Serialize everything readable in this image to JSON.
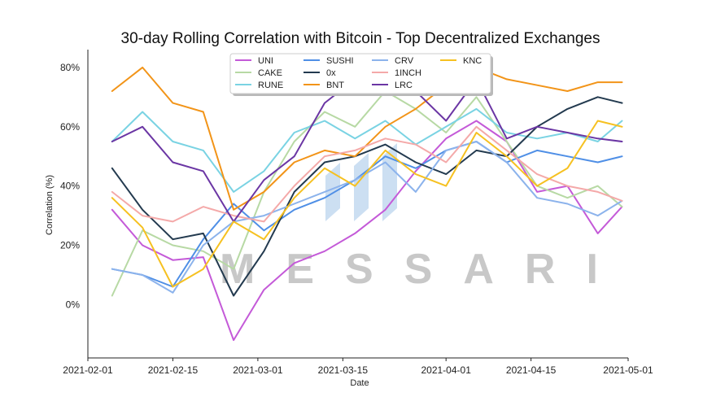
{
  "chart_data": {
    "type": "line",
    "title": "30-day Rolling Correlation with Bitcoin - Top Decentralized Exchanges",
    "xlabel": "Date",
    "ylabel": "Correlation (%)",
    "x_ticks": [
      "2021-02-01",
      "2021-02-15",
      "2021-03-01",
      "2021-03-15",
      "2021-04-01",
      "2021-04-15",
      "2021-05-01"
    ],
    "y_ticks": [
      "0%",
      "20%",
      "40%",
      "60%",
      "80%"
    ],
    "xlim": [
      "2021-02-01",
      "2021-05-01"
    ],
    "ylim": [
      -18,
      86
    ],
    "grid": false,
    "legend_position": "top",
    "watermark": "MESSARI",
    "x": [
      "2021-02-05",
      "2021-02-10",
      "2021-02-15",
      "2021-02-20",
      "2021-02-25",
      "2021-03-02",
      "2021-03-07",
      "2021-03-12",
      "2021-03-17",
      "2021-03-22",
      "2021-03-27",
      "2021-04-01",
      "2021-04-06",
      "2021-04-11",
      "2021-04-16",
      "2021-04-21",
      "2021-04-26",
      "2021-04-30"
    ],
    "series": [
      {
        "name": "UNI",
        "color": "#c45ad8",
        "values": [
          32,
          20,
          15,
          16,
          -12,
          5,
          14,
          18,
          24,
          32,
          45,
          56,
          62,
          55,
          38,
          40,
          24,
          33
        ]
      },
      {
        "name": "CAKE",
        "color": "#b7d9a4",
        "values": [
          3,
          25,
          20,
          18,
          12,
          38,
          55,
          65,
          60,
          72,
          66,
          58,
          70,
          55,
          40,
          36,
          40,
          33
        ]
      },
      {
        "name": "RUNE",
        "color": "#7ad3e3",
        "values": [
          55,
          65,
          55,
          52,
          38,
          45,
          58,
          62,
          56,
          62,
          54,
          60,
          66,
          58,
          56,
          58,
          55,
          62
        ]
      },
      {
        "name": "SUSHI",
        "color": "#4f8fe6",
        "values": [
          12,
          10,
          6,
          22,
          34,
          25,
          32,
          36,
          42,
          50,
          46,
          52,
          55,
          48,
          52,
          50,
          48,
          50
        ]
      },
      {
        "name": "0x",
        "color": "#233a4f",
        "values": [
          46,
          32,
          22,
          24,
          3,
          18,
          38,
          48,
          50,
          54,
          48,
          44,
          52,
          50,
          60,
          66,
          70,
          68
        ]
      },
      {
        "name": "BNT",
        "color": "#f29418",
        "values": [
          72,
          80,
          68,
          65,
          32,
          38,
          48,
          52,
          50,
          60,
          66,
          74,
          80,
          76,
          74,
          72,
          75,
          75
        ]
      },
      {
        "name": "CRV",
        "color": "#8cb3ec",
        "values": [
          12,
          10,
          4,
          20,
          28,
          30,
          34,
          38,
          42,
          48,
          38,
          52,
          55,
          48,
          36,
          34,
          30,
          35
        ]
      },
      {
        "name": "1INCH",
        "color": "#f4a9a9",
        "values": [
          38,
          30,
          28,
          33,
          30,
          28,
          40,
          50,
          52,
          56,
          54,
          48,
          60,
          52,
          44,
          40,
          38,
          35
        ]
      },
      {
        "name": "LRC",
        "color": "#6b36a4",
        "values": [
          55,
          60,
          48,
          45,
          28,
          42,
          50,
          68,
          76,
          80,
          72,
          62,
          76,
          56,
          60,
          58,
          56,
          55
        ]
      },
      {
        "name": "KNC",
        "color": "#f6c121",
        "values": [
          36,
          26,
          6,
          12,
          28,
          22,
          36,
          46,
          40,
          52,
          44,
          40,
          58,
          50,
          40,
          46,
          62,
          60
        ]
      }
    ]
  }
}
